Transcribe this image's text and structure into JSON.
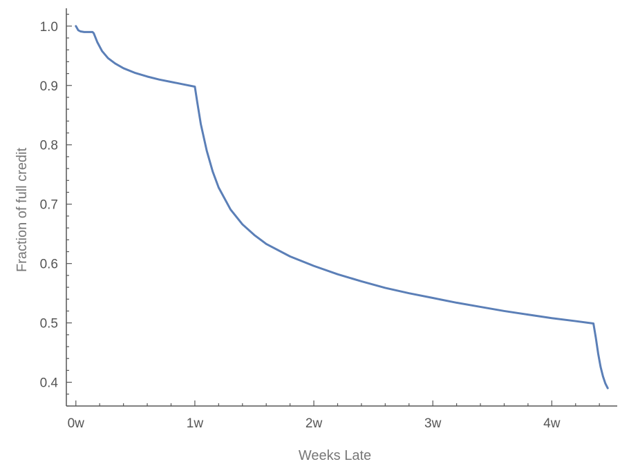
{
  "chart_data": {
    "type": "line",
    "xlabel": "Weeks Late",
    "ylabel": "Fraction of full credit",
    "xlim": [
      -0.08,
      4.55
    ],
    "ylim": [
      0.36,
      1.03
    ],
    "x_ticks": [
      {
        "value": 0,
        "label": "0w"
      },
      {
        "value": 1,
        "label": "1w"
      },
      {
        "value": 2,
        "label": "2w"
      },
      {
        "value": 3,
        "label": "3w"
      },
      {
        "value": 4,
        "label": "4w"
      }
    ],
    "y_ticks": [
      {
        "value": 0.4,
        "label": "0.4"
      },
      {
        "value": 0.5,
        "label": "0.5"
      },
      {
        "value": 0.6,
        "label": "0.6"
      },
      {
        "value": 0.7,
        "label": "0.7"
      },
      {
        "value": 0.8,
        "label": "0.8"
      },
      {
        "value": 0.9,
        "label": "0.9"
      },
      {
        "value": 1.0,
        "label": "1.0"
      }
    ],
    "grid": false,
    "series": [
      {
        "color": "#5b7fb7",
        "x": [
          0,
          0.02,
          0.04,
          0.07,
          0.1,
          0.14,
          0.15,
          0.18,
          0.22,
          0.27,
          0.33,
          0.4,
          0.5,
          0.6,
          0.7,
          0.8,
          0.9,
          1.0,
          1.02,
          1.05,
          1.1,
          1.15,
          1.2,
          1.3,
          1.4,
          1.5,
          1.6,
          1.8,
          2.0,
          2.2,
          2.4,
          2.6,
          2.8,
          3.0,
          3.2,
          3.4,
          3.6,
          3.8,
          4.0,
          4.2,
          4.35,
          4.37,
          4.39,
          4.41,
          4.43,
          4.45,
          4.47
        ],
        "y": [
          1.0,
          0.993,
          0.991,
          0.99,
          0.99,
          0.99,
          0.988,
          0.973,
          0.958,
          0.946,
          0.937,
          0.929,
          0.921,
          0.915,
          0.91,
          0.906,
          0.902,
          0.898,
          0.872,
          0.835,
          0.79,
          0.755,
          0.728,
          0.691,
          0.666,
          0.648,
          0.633,
          0.612,
          0.596,
          0.582,
          0.57,
          0.559,
          0.55,
          0.542,
          0.534,
          0.527,
          0.52,
          0.514,
          0.508,
          0.503,
          0.499,
          0.475,
          0.448,
          0.426,
          0.41,
          0.398,
          0.39
        ]
      }
    ]
  }
}
